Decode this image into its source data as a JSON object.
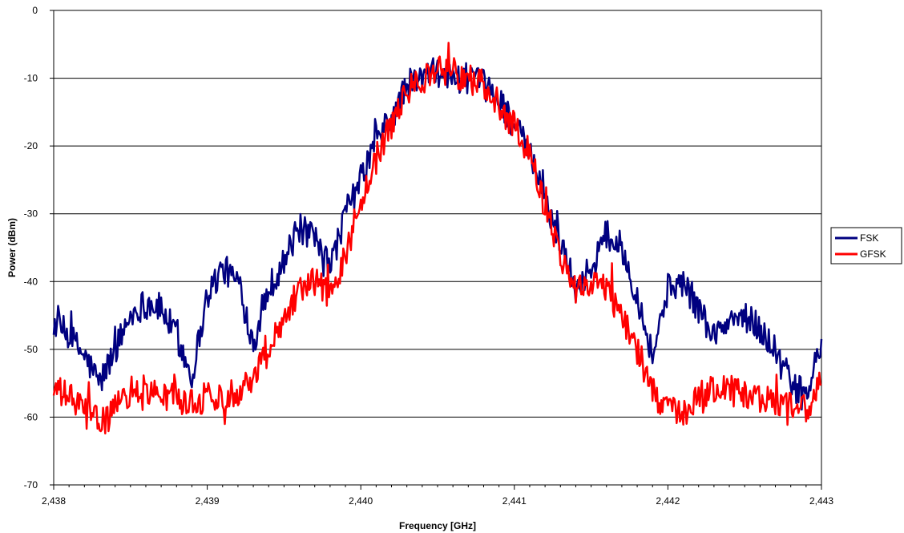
{
  "chart_data": {
    "type": "line",
    "title": "",
    "xlabel": "Frequency [GHz]",
    "ylabel": "Power (dBm)",
    "xlim": [
      2.438,
      2.443
    ],
    "ylim": [
      -70,
      0
    ],
    "x_ticks": [
      2.438,
      2.439,
      2.44,
      2.441,
      2.442,
      2.443
    ],
    "x_tick_labels": [
      "2,438",
      "2,439",
      "2,440",
      "2,441",
      "2,442",
      "2,443"
    ],
    "y_ticks": [
      0,
      -10,
      -20,
      -30,
      -40,
      -50,
      -60,
      -70
    ],
    "y_tick_labels": [
      "0",
      "-10",
      "-20",
      "-30",
      "-40",
      "-50",
      "-60",
      "-70"
    ],
    "grid": "horizontal",
    "legend_position": "right",
    "series": [
      {
        "name": "FSK",
        "color": "#000080",
        "x": [
          2.438,
          2.4381,
          2.4382,
          2.4383,
          2.4384,
          2.4385,
          2.4386,
          2.4387,
          2.4388,
          2.4389,
          2.439,
          2.4391,
          2.4392,
          2.4393,
          2.4394,
          2.4395,
          2.4396,
          2.4397,
          2.4398,
          2.4399,
          2.44,
          2.4401,
          2.4402,
          2.4403,
          2.4404,
          2.4405,
          2.4406,
          2.4407,
          2.4408,
          2.4409,
          2.441,
          2.4411,
          2.4412,
          2.4413,
          2.4414,
          2.4415,
          2.4416,
          2.4417,
          2.4418,
          2.4419,
          2.442,
          2.4421,
          2.4422,
          2.4423,
          2.4424,
          2.4425,
          2.4426,
          2.4427,
          2.4428,
          2.4429,
          2.443
        ],
        "values": [
          -46,
          -48,
          -51,
          -55,
          -50,
          -45,
          -43,
          -44,
          -48,
          -54,
          -42,
          -38,
          -40,
          -49,
          -41,
          -37,
          -32,
          -34,
          -38,
          -30,
          -25,
          -19,
          -16,
          -11,
          -10,
          -9,
          -10,
          -10,
          -11,
          -13,
          -17,
          -21,
          -28,
          -34,
          -41,
          -38,
          -33,
          -35,
          -42,
          -51,
          -41,
          -40,
          -44,
          -48,
          -46,
          -45,
          -47,
          -50,
          -55,
          -57,
          -49
        ]
      },
      {
        "name": "GFSK",
        "color": "#ff0000",
        "x": [
          2.438,
          2.4381,
          2.4382,
          2.4383,
          2.4384,
          2.4385,
          2.4386,
          2.4387,
          2.4388,
          2.4389,
          2.439,
          2.4391,
          2.4392,
          2.4393,
          2.4394,
          2.4395,
          2.4396,
          2.4397,
          2.4398,
          2.4399,
          2.44,
          2.4401,
          2.4402,
          2.4403,
          2.4404,
          2.4405,
          2.4406,
          2.4407,
          2.4408,
          2.4409,
          2.441,
          2.4411,
          2.4412,
          2.4413,
          2.4414,
          2.4415,
          2.4416,
          2.4417,
          2.4418,
          2.4419,
          2.442,
          2.4421,
          2.4422,
          2.4423,
          2.4424,
          2.4425,
          2.4426,
          2.4427,
          2.4428,
          2.4429,
          2.443
        ],
        "values": [
          -56,
          -57,
          -59,
          -61,
          -59,
          -56,
          -56,
          -57,
          -57,
          -58,
          -57,
          -57,
          -56,
          -54,
          -50,
          -45,
          -41,
          -40,
          -42,
          -36,
          -28,
          -22,
          -17,
          -12,
          -10,
          -9,
          -9,
          -10,
          -11,
          -14,
          -17,
          -21,
          -29,
          -36,
          -41,
          -40,
          -41,
          -45,
          -50,
          -56,
          -59,
          -60,
          -57,
          -56,
          -56,
          -57,
          -57,
          -58,
          -58,
          -59,
          -55
        ]
      }
    ]
  }
}
